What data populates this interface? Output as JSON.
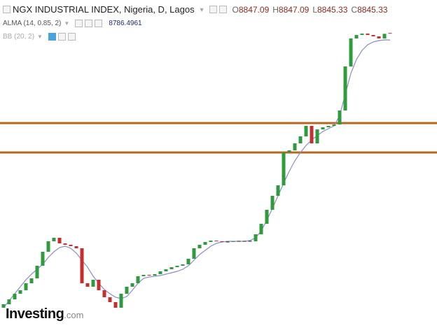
{
  "chart_data": {
    "type": "candlestick",
    "title": "NGX INDUSTRIAL INDEX, Nigeria, D, Lagos",
    "ohlc": [
      {
        "label": "O",
        "value": 8847.09
      },
      {
        "label": "H",
        "value": 8847.09
      },
      {
        "label": "L",
        "value": 8845.33
      },
      {
        "label": "C",
        "value": 8845.33
      }
    ],
    "indicators": [
      {
        "name": "ALMA (14, 0.85, 2)",
        "value": 8786.4961,
        "color": "#8a8ccc",
        "values": [
          6490,
          6550,
          6610,
          6670,
          6730,
          6778,
          6820,
          6862,
          6922,
          6970,
          7006,
          7018,
          7000,
          6958,
          6898,
          6838,
          6760,
          6700,
          6646,
          6610,
          6580,
          6568,
          6586,
          6640,
          6700,
          6742,
          6754,
          6760,
          6766,
          6778,
          6790,
          6802,
          6820,
          6850,
          6898,
          6946,
          6982,
          7018,
          7042,
          7054,
          7060,
          7060,
          7060,
          7060,
          7066,
          7090,
          7150,
          7240,
          7342,
          7450,
          7558,
          7660,
          7750,
          7822,
          7882,
          7930,
          7966,
          8002,
          8026,
          8050,
          8140,
          8320,
          8500,
          8620,
          8698,
          8746,
          8770,
          8782,
          8788,
          8786.4961
        ]
      },
      {
        "name": "BB (20, 2)"
      }
    ],
    "open": [
      6490,
      6520,
      6562,
      6610,
      6640,
      6700,
      6742,
      6850,
      6970,
      7060,
      7090,
      7042,
      7030,
      7018,
      7000,
      6700,
      6670,
      6730,
      6640,
      6580,
      6538,
      6490,
      6610,
      6670,
      6700,
      6760,
      6772,
      6766,
      6778,
      6802,
      6820,
      6838,
      6850,
      6862,
      6910,
      7000,
      7030,
      7054,
      7066,
      7060,
      7054,
      7054,
      7060,
      7060,
      7060,
      7060,
      7120,
      7210,
      7330,
      7450,
      7540,
      7822,
      7840,
      7900,
      7960,
      8050,
      7900,
      8020,
      8038,
      8050,
      8062,
      8182,
      8560,
      8800,
      8830,
      8842,
      8830,
      8818,
      8800,
      8847.09
    ],
    "close": [
      6520,
      6562,
      6610,
      6640,
      6700,
      6742,
      6850,
      6970,
      7060,
      7090,
      7042,
      7030,
      7018,
      7000,
      6700,
      6670,
      6730,
      6640,
      6580,
      6538,
      6490,
      6610,
      6670,
      6700,
      6760,
      6772,
      6766,
      6778,
      6802,
      6820,
      6838,
      6850,
      6862,
      6910,
      7000,
      7030,
      7054,
      7066,
      7060,
      7054,
      7054,
      7060,
      7060,
      7060,
      7060,
      7120,
      7210,
      7330,
      7450,
      7540,
      7822,
      7840,
      7900,
      7960,
      8050,
      7900,
      8020,
      8038,
      8050,
      8062,
      8182,
      8560,
      8800,
      8830,
      8842,
      8830,
      8818,
      8800,
      8840,
      8845.33
    ],
    "up_color": "#2e9b3c",
    "down_color": "#c62f2f",
    "ylim": [
      6316,
      9130
    ],
    "levels": [
      8074,
      7822
    ],
    "level_color": "#b8651f"
  },
  "logo": {
    "name": "Investing",
    "suffix": ".com"
  }
}
